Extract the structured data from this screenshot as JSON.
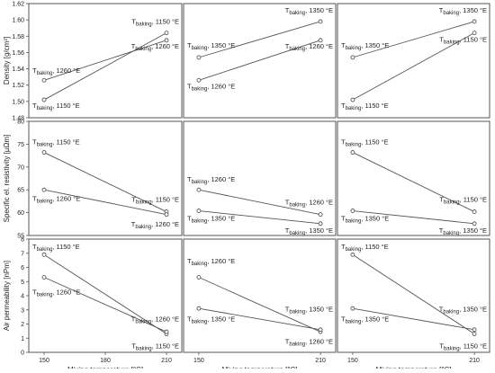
{
  "chart_data": [
    {
      "type": "line",
      "row": 0,
      "col": 0,
      "x": [
        150,
        210
      ],
      "ylim": [
        1.48,
        1.62
      ],
      "yticks": [
        1.48,
        1.5,
        1.52,
        1.54,
        1.56,
        1.58,
        1.6,
        1.62
      ],
      "ytick_labels": [
        "1.48",
        "1.50",
        "1.52",
        "1.54",
        "1.56",
        "1.58",
        "1.60",
        "1.62"
      ],
      "ylabel": "Density [g/cm³]",
      "series": [
        {
          "name": "T baking, 1260 °E",
          "values": [
            1.526,
            1.575
          ],
          "label_at": "left-above"
        },
        {
          "name": "T baking, 1150 °E",
          "values": [
            1.502,
            1.584
          ],
          "label_at": "right-above"
        }
      ],
      "annotations": [
        {
          "text_main": "T",
          "text_sub": "baking",
          "text_rest": ", 1260 °E",
          "x_data": 150,
          "y_data": 1.535
        },
        {
          "text_main": "T",
          "text_sub": "baking",
          "text_rest": ", 1150 °E",
          "x_data": 150,
          "y_data": 1.492
        },
        {
          "text_main": "T",
          "text_sub": "baking",
          "text_rest": ", 1150 °E",
          "x_data": 210,
          "y_data": 1.595
        },
        {
          "text_main": "T",
          "text_sub": "baking",
          "text_rest": ", 1260 °E",
          "x_data": 210,
          "y_data": 1.565
        }
      ]
    },
    {
      "type": "line",
      "row": 0,
      "col": 1,
      "x": [
        150,
        210
      ],
      "ylim": [
        1.48,
        1.62
      ],
      "series": [
        {
          "name": "T baking, 1350 °E",
          "values": [
            1.554,
            1.598
          ]
        },
        {
          "name": "T baking, 1260 °E",
          "values": [
            1.526,
            1.575
          ]
        }
      ],
      "annotations": [
        {
          "text_main": "T",
          "text_sub": "baking",
          "text_rest": ", 1350 °E",
          "x_data": 150,
          "y_data": 1.566
        },
        {
          "text_main": "T",
          "text_sub": "baking",
          "text_rest": ", 1260 °E",
          "x_data": 150,
          "y_data": 1.516
        },
        {
          "text_main": "T",
          "text_sub": "baking",
          "text_rest": ", 1350 °E",
          "x_data": 210,
          "y_data": 1.609
        },
        {
          "text_main": "T",
          "text_sub": "baking",
          "text_rest": ", 1260 °E",
          "x_data": 210,
          "y_data": 1.565
        }
      ]
    },
    {
      "type": "line",
      "row": 0,
      "col": 2,
      "x": [
        150,
        210
      ],
      "ylim": [
        1.48,
        1.62
      ],
      "series": [
        {
          "name": "T baking, 1350 °E",
          "values": [
            1.554,
            1.598
          ]
        },
        {
          "name": "T baking, 1150 °E",
          "values": [
            1.502,
            1.584
          ]
        }
      ],
      "annotations": [
        {
          "text_main": "T",
          "text_sub": "baking",
          "text_rest": ", 1350 °E",
          "x_data": 150,
          "y_data": 1.566
        },
        {
          "text_main": "T",
          "text_sub": "baking",
          "text_rest": ", 1150 °E",
          "x_data": 150,
          "y_data": 1.492
        },
        {
          "text_main": "T",
          "text_sub": "baking",
          "text_rest": ", 1350 °E",
          "x_data": 210,
          "y_data": 1.609
        },
        {
          "text_main": "T",
          "text_sub": "baking",
          "text_rest": ", 1150 °E",
          "x_data": 210,
          "y_data": 1.573
        }
      ]
    },
    {
      "type": "line",
      "row": 1,
      "col": 0,
      "x": [
        150,
        210
      ],
      "ylim": [
        55,
        80
      ],
      "yticks": [
        55,
        60,
        65,
        70,
        75,
        80
      ],
      "ytick_labels": [
        "55",
        "60",
        "65",
        "70",
        "75",
        "80"
      ],
      "ylabel": "Specific el. resistivity [µΩm]",
      "series": [
        {
          "name": "T baking, 1150 °E",
          "values": [
            73.2,
            60.2
          ]
        },
        {
          "name": "T baking, 1260 °E",
          "values": [
            65.0,
            59.6
          ]
        }
      ],
      "annotations": [
        {
          "text_main": "T",
          "text_sub": "baking",
          "text_rest": ", 1150 °E",
          "x_data": 150,
          "y_data": 75.0
        },
        {
          "text_main": "T",
          "text_sub": "baking",
          "text_rest": ", 1260 °E",
          "x_data": 150,
          "y_data": 62.6
        },
        {
          "text_main": "T",
          "text_sub": "baking",
          "text_rest": ", 1150 °E",
          "x_data": 210,
          "y_data": 62.4
        },
        {
          "text_main": "T",
          "text_sub": "baking",
          "text_rest": ", 1260 °E",
          "x_data": 210,
          "y_data": 57.0
        }
      ]
    },
    {
      "type": "line",
      "row": 1,
      "col": 1,
      "x": [
        150,
        210
      ],
      "ylim": [
        55,
        80
      ],
      "series": [
        {
          "name": "T baking, 1260 °E",
          "values": [
            65.0,
            59.6
          ]
        },
        {
          "name": "T baking, 1350 °E",
          "values": [
            60.4,
            57.6
          ]
        }
      ],
      "annotations": [
        {
          "text_main": "T",
          "text_sub": "baking",
          "text_rest": ", 1260 °E",
          "x_data": 150,
          "y_data": 66.8
        },
        {
          "text_main": "T",
          "text_sub": "baking",
          "text_rest": ", 1350 °E",
          "x_data": 150,
          "y_data": 58.2
        },
        {
          "text_main": "T",
          "text_sub": "baking",
          "text_rest": ", 1260 °E",
          "x_data": 210,
          "y_data": 61.8
        },
        {
          "text_main": "T",
          "text_sub": "baking",
          "text_rest": ", 1350 °E",
          "x_data": 210,
          "y_data": 55.6
        }
      ]
    },
    {
      "type": "line",
      "row": 1,
      "col": 2,
      "x": [
        150,
        210
      ],
      "ylim": [
        55,
        80
      ],
      "series": [
        {
          "name": "T baking, 1150 °E",
          "values": [
            73.2,
            60.2
          ]
        },
        {
          "name": "T baking, 1350 °E",
          "values": [
            60.4,
            57.6
          ]
        }
      ],
      "annotations": [
        {
          "text_main": "T",
          "text_sub": "baking",
          "text_rest": ", 1150 °E",
          "x_data": 150,
          "y_data": 75.0
        },
        {
          "text_main": "T",
          "text_sub": "baking",
          "text_rest": ", 1350 °E",
          "x_data": 150,
          "y_data": 58.2
        },
        {
          "text_main": "T",
          "text_sub": "baking",
          "text_rest": ", 1150 °E",
          "x_data": 210,
          "y_data": 62.4
        },
        {
          "text_main": "T",
          "text_sub": "baking",
          "text_rest": ", 1350 °E",
          "x_data": 210,
          "y_data": 55.6
        }
      ]
    },
    {
      "type": "line",
      "row": 2,
      "col": 0,
      "x": [
        150,
        210
      ],
      "ylim": [
        0,
        8
      ],
      "yticks": [
        0,
        1,
        2,
        3,
        4,
        5,
        6,
        7,
        8
      ],
      "ytick_labels": [
        "0",
        "1",
        "2",
        "3",
        "4",
        "5",
        "6",
        "7",
        "8"
      ],
      "ylabel": "Air permeability [nPm]",
      "xticks": [
        150,
        180,
        210
      ],
      "xlabel": "Mixing temperature [°C]",
      "series": [
        {
          "name": "T baking, 1150 °E",
          "values": [
            6.9,
            1.3
          ]
        },
        {
          "name": "T baking, 1260 °E",
          "values": [
            5.3,
            1.45
          ]
        }
      ],
      "annotations": [
        {
          "text_main": "T",
          "text_sub": "baking",
          "text_rest": ", 1150 °E",
          "x_data": 150,
          "y_data": 7.3
        },
        {
          "text_main": "T",
          "text_sub": "baking",
          "text_rest": ", 1260 °E",
          "x_data": 150,
          "y_data": 4.1
        },
        {
          "text_main": "T",
          "text_sub": "baking",
          "text_rest": ", 1260 °E",
          "x_data": 210,
          "y_data": 2.2
        },
        {
          "text_main": "T",
          "text_sub": "baking",
          "text_rest": ", 1150 °E",
          "x_data": 210,
          "y_data": 0.3
        }
      ]
    },
    {
      "type": "line",
      "row": 2,
      "col": 1,
      "x": [
        150,
        210
      ],
      "ylim": [
        0,
        8
      ],
      "xticks": [
        150,
        210
      ],
      "xlabel": "Mixing temperature [°C]",
      "series": [
        {
          "name": "T baking, 1260 °E",
          "values": [
            5.3,
            1.45
          ]
        },
        {
          "name": "T baking, 1350 °E",
          "values": [
            3.1,
            1.6
          ]
        }
      ],
      "annotations": [
        {
          "text_main": "T",
          "text_sub": "baking",
          "text_rest": ", 1260 °E",
          "x_data": 150,
          "y_data": 6.3
        },
        {
          "text_main": "T",
          "text_sub": "baking",
          "text_rest": ", 1350 °E",
          "x_data": 150,
          "y_data": 2.2
        },
        {
          "text_main": "T",
          "text_sub": "baking",
          "text_rest": ", 1350 °E",
          "x_data": 210,
          "y_data": 2.9
        },
        {
          "text_main": "T",
          "text_sub": "baking",
          "text_rest": ", 1260 °E",
          "x_data": 210,
          "y_data": 0.6
        }
      ]
    },
    {
      "type": "line",
      "row": 2,
      "col": 2,
      "x": [
        150,
        210
      ],
      "ylim": [
        0,
        8
      ],
      "xticks": [
        150,
        210
      ],
      "xlabel": "Mixing temperature [°C]",
      "series": [
        {
          "name": "T baking, 1150 °E",
          "values": [
            6.9,
            1.3
          ]
        },
        {
          "name": "T baking, 1350 °E",
          "values": [
            3.1,
            1.6
          ]
        }
      ],
      "annotations": [
        {
          "text_main": "T",
          "text_sub": "baking",
          "text_rest": ", 1150 °E",
          "x_data": 150,
          "y_data": 7.3
        },
        {
          "text_main": "T",
          "text_sub": "baking",
          "text_rest": ", 1350 °E",
          "x_data": 150,
          "y_data": 2.2
        },
        {
          "text_main": "T",
          "text_sub": "baking",
          "text_rest": ", 1350 °E",
          "x_data": 210,
          "y_data": 2.9
        },
        {
          "text_main": "T",
          "text_sub": "baking",
          "text_rest": ", 1150 °E",
          "x_data": 210,
          "y_data": 0.3
        }
      ]
    }
  ],
  "colors": {
    "line": "#555555",
    "marker_fill": "#ffffff",
    "frame": "#555555",
    "text": "#222222"
  }
}
